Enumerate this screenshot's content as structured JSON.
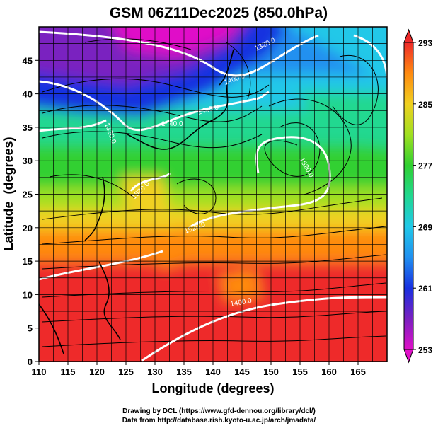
{
  "chart_data": {
    "type": "heatmap",
    "title": "GSM 06Z11Dec2025 (850.0hPa)",
    "xlabel": "Longitude (degrees)",
    "ylabel": "Latitude  (degrees)",
    "xlim": [
      110,
      170
    ],
    "ylim": [
      0,
      50
    ],
    "x_ticks": [
      110,
      115,
      120,
      125,
      130,
      135,
      140,
      145,
      150,
      155,
      160,
      165
    ],
    "y_ticks": [
      0,
      5,
      10,
      15,
      20,
      25,
      30,
      35,
      40,
      45
    ],
    "grid": true,
    "colorbar": {
      "min": 253,
      "max": 293,
      "ticks": [
        253,
        261,
        269,
        277,
        285,
        293
      ],
      "position": "right"
    },
    "contour_labels": [
      "1320.0",
      "1320.0",
      "1400.0",
      "1440.0",
      "1440.0",
      "1520.0",
      "1520.0",
      "1520.0",
      "1400.0"
    ],
    "colors": {
      "c253": "#e010c8",
      "c257": "#7a20c0",
      "c261": "#1830e0",
      "c265": "#2090f0",
      "c269": "#20c8e8",
      "c273": "#20d890",
      "c277": "#30d030",
      "c281": "#a0e020",
      "c285": "#f0d020",
      "c289": "#ff8a10",
      "c293": "#ee2a2a"
    }
  },
  "footer": {
    "line1": "Drawing by DCL (https://www.gfd-dennou.org/library/dcl/)",
    "line2": "Data from http://database.rish.kyoto-u.ac.jp/arch/jmadata/"
  }
}
